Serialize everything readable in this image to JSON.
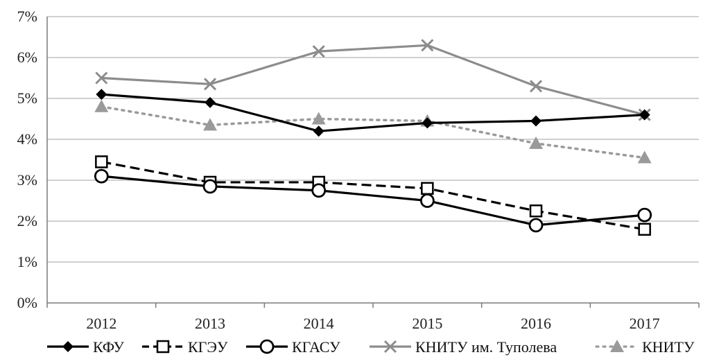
{
  "chart_data": {
    "type": "line",
    "x": [
      "2012",
      "2013",
      "2014",
      "2015",
      "2016",
      "2017"
    ],
    "ylim": [
      0,
      7
    ],
    "yticks": [
      "0%",
      "1%",
      "2%",
      "3%",
      "4%",
      "5%",
      "6%",
      "7%"
    ],
    "grid": "horizontal",
    "legend_position": "bottom",
    "series": [
      {
        "name": "КФУ",
        "values": [
          5.1,
          4.9,
          4.2,
          4.4,
          4.45,
          4.6
        ],
        "color": "#000000",
        "dash": "solid",
        "marker": "diamond"
      },
      {
        "name": "КГЭУ",
        "values": [
          3.45,
          2.95,
          2.95,
          2.8,
          2.25,
          1.8
        ],
        "color": "#000000",
        "dash": "dashed",
        "marker": "square-open"
      },
      {
        "name": "КГАСУ",
        "values": [
          3.1,
          2.85,
          2.75,
          2.5,
          1.9,
          2.15
        ],
        "color": "#000000",
        "dash": "solid",
        "marker": "circle-open"
      },
      {
        "name": "КНИТУ им. Туполева",
        "values": [
          5.5,
          5.35,
          6.15,
          6.3,
          5.3,
          4.6
        ],
        "color": "#8c8c8c",
        "dash": "solid",
        "marker": "x"
      },
      {
        "name": "КНИТУ",
        "values": [
          4.8,
          4.35,
          4.5,
          4.45,
          3.9,
          3.55
        ],
        "color": "#9a9a9a",
        "dash": "dotted",
        "marker": "triangle"
      }
    ]
  }
}
